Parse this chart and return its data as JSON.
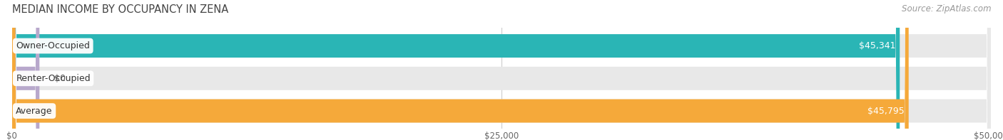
{
  "title": "MEDIAN INCOME BY OCCUPANCY IN ZENA",
  "source": "Source: ZipAtlas.com",
  "categories": [
    "Owner-Occupied",
    "Renter-Occupied",
    "Average"
  ],
  "values": [
    45341,
    0,
    45795
  ],
  "bar_colors": [
    "#2ab5b5",
    "#b8a8cc",
    "#f5a93a"
  ],
  "bar_bg_color": "#e8e8e8",
  "value_labels": [
    "$45,341",
    "$0",
    "$45,795"
  ],
  "x_ticks": [
    0,
    25000,
    50000
  ],
  "x_tick_labels": [
    "$0",
    "$25,000",
    "$50,000"
  ],
  "xlim": [
    0,
    50000
  ],
  "title_fontsize": 10.5,
  "source_fontsize": 8.5,
  "bar_label_fontsize": 9,
  "value_fontsize": 9,
  "figsize": [
    14.06,
    1.97
  ],
  "dpi": 100
}
